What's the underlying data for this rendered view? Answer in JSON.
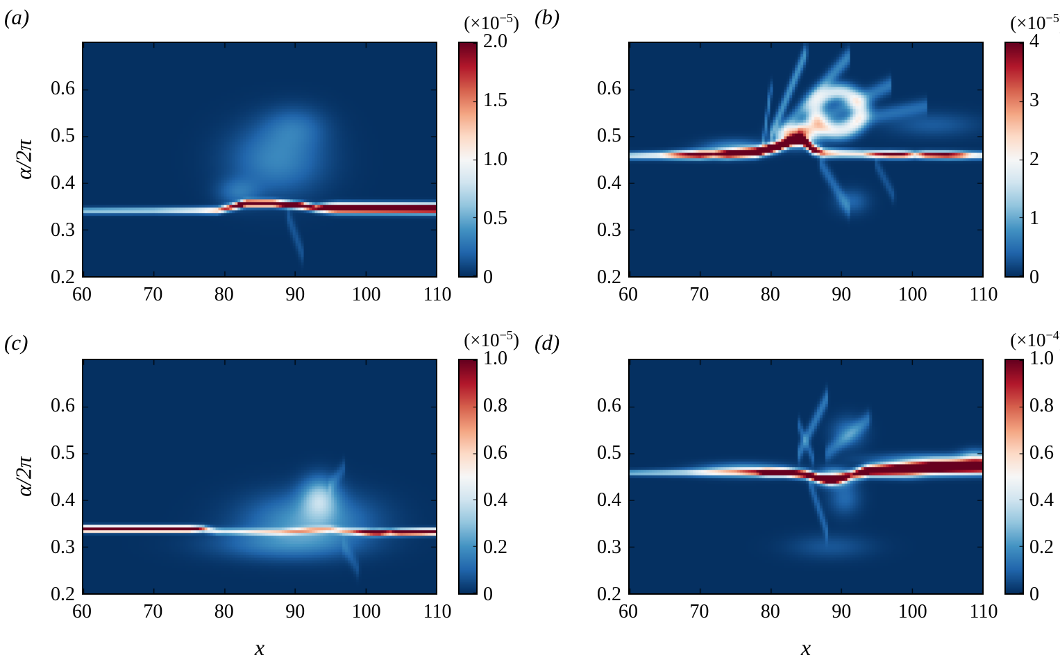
{
  "figure": {
    "background": "#ffffff",
    "colormap": "RdBu reversed (dark blue = 0, white = mid, dark red = max)",
    "colormap_stops": [
      "#053061",
      "#2166ac",
      "#4393c3",
      "#92c5de",
      "#d1e5f0",
      "#f7f7f7",
      "#fddbc7",
      "#f4a582",
      "#d6604d",
      "#b2182b",
      "#67001f"
    ]
  },
  "chart_data": [
    {
      "type": "heatmap",
      "label": "(a)",
      "ylabel": "α/2π",
      "x_range": [
        60,
        110
      ],
      "y_range": [
        0.2,
        0.7
      ],
      "x_ticks": [
        "60",
        "70",
        "80",
        "90",
        "100",
        "110"
      ],
      "y_ticks": [
        "0.6",
        "0.5",
        "0.4",
        "0.3",
        "0.2"
      ],
      "colorbar": {
        "scale_prefix": "(×10",
        "scale_exponent": "−5",
        "scale_suffix": ")",
        "ticks": [
          "2.0",
          "1.5",
          "1.0",
          "0.5",
          "0"
        ],
        "range": [
          0,
          2.0
        ]
      },
      "description": "Thin spectral ridge near α/2π≈0.34: faint blue for x=60–80, saturated red from x≈82–110 stepping up to ≈0.356 then back to ≈0.345; diffuse blue fan above around x≈85–95.",
      "features": [
        {
          "type": "ridge",
          "points": [
            [
              60,
              0.34
            ],
            [
              79,
              0.341
            ],
            [
              81,
              0.348
            ],
            [
              83,
              0.356
            ],
            [
              87,
              0.356
            ],
            [
              91,
              0.351
            ],
            [
              93,
              0.346
            ],
            [
              110,
              0.345
            ]
          ],
          "amp": [
            [
              60,
              0.32
            ],
            [
              70,
              0.36
            ],
            [
              76,
              0.5
            ],
            [
              79,
              0.7
            ],
            [
              81,
              1.0
            ],
            [
              83,
              1.5
            ],
            [
              91,
              1.5
            ],
            [
              93,
              1.0
            ],
            [
              95,
              1.5
            ],
            [
              110,
              1.5
            ]
          ],
          "sigma": [
            [
              60,
              0.0045
            ],
            [
              92,
              0.0045
            ],
            [
              96,
              0.0065
            ],
            [
              110,
              0.0065
            ]
          ]
        },
        {
          "type": "blob",
          "cx": 87.5,
          "cy": 0.45,
          "sx": 4.5,
          "sy": 0.05,
          "amp": 0.17
        },
        {
          "type": "blob",
          "cx": 90,
          "cy": 0.52,
          "sx": 3,
          "sy": 0.03,
          "amp": 0.1
        },
        {
          "type": "blob",
          "cx": 82,
          "cy": 0.38,
          "sx": 2,
          "sy": 0.02,
          "amp": 0.12
        },
        {
          "type": "streak",
          "x0": 89,
          "y0": 0.33,
          "x1": 91,
          "y1": 0.25,
          "w": 0.015,
          "amp": 0.07
        }
      ]
    },
    {
      "type": "heatmap",
      "label": "(b)",
      "x_range": [
        60,
        110
      ],
      "y_range": [
        0.2,
        0.7
      ],
      "x_ticks": [
        "60",
        "70",
        "80",
        "90",
        "100",
        "110"
      ],
      "y_ticks": [
        "0.6",
        "0.5",
        "0.4",
        "0.3",
        "0.2"
      ],
      "colorbar": {
        "scale_prefix": "(×10",
        "scale_exponent": "−5",
        "scale_suffix": ")",
        "ticks": [
          "4",
          "3",
          "2",
          "1",
          "0"
        ],
        "range": [
          0,
          4
        ]
      },
      "description": "Ridge near α/2π≈0.46 across full x, red from x≈67 with peak rising to ≈0.49 at x≈83; large diffuse fan of streaks above (x≈80–100) with white ring and dark hole near (90, 0.55); intermittent red patches for x>94.",
      "features": [
        {
          "type": "ridge",
          "points": [
            [
              60,
              0.458
            ],
            [
              68,
              0.46
            ],
            [
              74,
              0.462
            ],
            [
              78,
              0.466
            ],
            [
              81,
              0.478
            ],
            [
              83,
              0.49
            ],
            [
              84.5,
              0.492
            ],
            [
              86,
              0.472
            ],
            [
              87.5,
              0.464
            ],
            [
              95,
              0.461
            ],
            [
              110,
              0.459
            ]
          ],
          "amp": [
            [
              60,
              0.4
            ],
            [
              64,
              0.5
            ],
            [
              67,
              0.9
            ],
            [
              70,
              1.2
            ],
            [
              72,
              0.9
            ],
            [
              74,
              1.3
            ],
            [
              78,
              1.5
            ],
            [
              85,
              1.6
            ],
            [
              86.5,
              1.0
            ],
            [
              88,
              0.7
            ],
            [
              90,
              0.55
            ],
            [
              93,
              0.55
            ],
            [
              95,
              0.9
            ],
            [
              97,
              1.1
            ],
            [
              99,
              1.0
            ],
            [
              100.5,
              0.6
            ],
            [
              102,
              1.0
            ],
            [
              105,
              1.1
            ],
            [
              107,
              0.9
            ],
            [
              108.5,
              0.6
            ],
            [
              110,
              0.5
            ]
          ],
          "sigma": [
            [
              60,
              0.005
            ],
            [
              78,
              0.0065
            ],
            [
              86,
              0.0065
            ],
            [
              95,
              0.005
            ],
            [
              110,
              0.005
            ]
          ]
        },
        {
          "type": "blob",
          "cx": 84,
          "cy": 0.503,
          "sx": 1.8,
          "sy": 0.015,
          "amp": 0.65
        },
        {
          "type": "blob",
          "cx": 75,
          "cy": 0.475,
          "sx": 3,
          "sy": 0.012,
          "amp": 0.2
        },
        {
          "type": "streak",
          "x0": 80,
          "y0": 0.5,
          "x1": 85,
          "y1": 0.68,
          "w": 0.013,
          "amp": 0.2
        },
        {
          "type": "streak",
          "x0": 81,
          "y0": 0.5,
          "x1": 91,
          "y1": 0.67,
          "w": 0.013,
          "amp": 0.17
        },
        {
          "type": "streak",
          "x0": 82,
          "y0": 0.5,
          "x1": 97,
          "y1": 0.61,
          "w": 0.012,
          "amp": 0.14
        },
        {
          "type": "streak",
          "x0": 84,
          "y0": 0.51,
          "x1": 102,
          "y1": 0.565,
          "w": 0.011,
          "amp": 0.11
        },
        {
          "type": "streak",
          "x0": 79,
          "y0": 0.49,
          "x1": 80,
          "y1": 0.6,
          "w": 0.012,
          "amp": 0.15
        },
        {
          "type": "ring",
          "cx": 89.5,
          "cy": 0.553,
          "sx": 3.2,
          "sy": 0.042,
          "w": 0.3,
          "amp": 0.42
        },
        {
          "type": "streak",
          "x0": 87,
          "y0": 0.445,
          "x1": 91,
          "y1": 0.345,
          "w": 0.013,
          "amp": 0.11
        },
        {
          "type": "streak",
          "x0": 95,
          "y0": 0.44,
          "x1": 97.5,
          "y1": 0.37,
          "w": 0.011,
          "amp": 0.07
        },
        {
          "type": "blob",
          "cx": 91.5,
          "cy": 0.36,
          "sx": 1.6,
          "sy": 0.018,
          "amp": 0.1
        },
        {
          "type": "blob",
          "cx": 103,
          "cy": 0.525,
          "sx": 4.5,
          "sy": 0.018,
          "amp": 0.08
        }
      ]
    },
    {
      "type": "heatmap",
      "label": "(c)",
      "xlabel": "x",
      "ylabel": "α/2π",
      "x_range": [
        60,
        110
      ],
      "y_range": [
        0.2,
        0.7
      ],
      "x_ticks": [
        "60",
        "70",
        "80",
        "90",
        "100",
        "110"
      ],
      "y_ticks": [
        "0.6",
        "0.5",
        "0.4",
        "0.3",
        "0.2"
      ],
      "colorbar": {
        "scale_prefix": "(×10",
        "scale_exponent": "−5",
        "scale_suffix": ")",
        "ticks": [
          "1.0",
          "0.8",
          "0.6",
          "0.4",
          "0.2",
          "0"
        ],
        "range": [
          0,
          1.0
        ]
      },
      "description": "Thin ridge at α/2π≈0.338: saturated red for x=60–77, weak patchy blue segment for x≈78–98 with small diffuse cloud around (92, 0.36), red again for x≈99–110 at ≈0.331.",
      "features": [
        {
          "type": "ridge",
          "points": [
            [
              60,
              0.338
            ],
            [
              77,
              0.338
            ],
            [
              79,
              0.333
            ],
            [
              88,
              0.331
            ],
            [
              92,
              0.335
            ],
            [
              95,
              0.337
            ],
            [
              97,
              0.333
            ],
            [
              101,
              0.33
            ],
            [
              110,
              0.332
            ]
          ],
          "amp": [
            [
              60,
              1.4
            ],
            [
              75,
              1.4
            ],
            [
              76.5,
              0.9
            ],
            [
              78,
              0.5
            ],
            [
              80,
              0.38
            ],
            [
              84,
              0.42
            ],
            [
              88,
              0.45
            ],
            [
              92,
              0.55
            ],
            [
              94,
              0.5
            ],
            [
              96,
              0.45
            ],
            [
              98,
              0.6
            ],
            [
              100,
              1.0
            ],
            [
              102,
              1.2
            ],
            [
              103.5,
              0.9
            ],
            [
              105,
              1.3
            ],
            [
              108,
              1.4
            ],
            [
              110,
              1.3
            ]
          ],
          "sigma": [
            [
              60,
              0.0042
            ],
            [
              110,
              0.0042
            ]
          ]
        },
        {
          "type": "blob",
          "cx": 92,
          "cy": 0.355,
          "sx": 6,
          "sy": 0.04,
          "amp": 0.22
        },
        {
          "type": "blob",
          "cx": 93.5,
          "cy": 0.405,
          "sx": 1.8,
          "sy": 0.03,
          "amp": 0.28
        },
        {
          "type": "blob",
          "cx": 88,
          "cy": 0.305,
          "sx": 7,
          "sy": 0.022,
          "amp": 0.12
        },
        {
          "type": "streak",
          "x0": 95,
          "y0": 0.43,
          "x1": 97,
          "y1": 0.47,
          "w": 0.012,
          "amp": 0.07
        },
        {
          "type": "streak",
          "x0": 97,
          "y0": 0.3,
          "x1": 99,
          "y1": 0.25,
          "w": 0.013,
          "amp": 0.06
        }
      ]
    },
    {
      "type": "heatmap",
      "label": "(d)",
      "xlabel": "x",
      "x_range": [
        60,
        110
      ],
      "y_range": [
        0.2,
        0.7
      ],
      "x_ticks": [
        "60",
        "70",
        "80",
        "90",
        "100",
        "110"
      ],
      "y_ticks": [
        "0.6",
        "0.5",
        "0.4",
        "0.3",
        "0.2"
      ],
      "colorbar": {
        "scale_prefix": "(×10",
        "scale_exponent": "−4",
        "scale_suffix": ")",
        "ticks": [
          "1.0",
          "0.8",
          "0.6",
          "0.4",
          "0.2",
          "0"
        ],
        "range": [
          0,
          1.0
        ]
      },
      "description": "Ridge near α/2π≈0.46: faint blue x=60–78, dark red x≈79–91 dipping to ≈0.443 near x≈88, then a thicker saturated red band from x≈93–110 rising to ≈0.472; faint blue structures above and below around x≈85–95.",
      "features": [
        {
          "type": "ridge",
          "points": [
            [
              60,
              0.458
            ],
            [
              70,
              0.459
            ],
            [
              76,
              0.46
            ],
            [
              82,
              0.459
            ],
            [
              85,
              0.455
            ],
            [
              87,
              0.446
            ],
            [
              88.5,
              0.443
            ],
            [
              90,
              0.447
            ],
            [
              92,
              0.456
            ],
            [
              94,
              0.463
            ],
            [
              99,
              0.466
            ],
            [
              103,
              0.47
            ],
            [
              110,
              0.472
            ]
          ],
          "amp": [
            [
              60,
              0.3
            ],
            [
              68,
              0.38
            ],
            [
              71,
              0.5
            ],
            [
              75,
              0.55
            ],
            [
              78,
              0.8
            ],
            [
              79.5,
              1.4
            ],
            [
              90,
              1.4
            ],
            [
              91.5,
              0.8
            ],
            [
              93,
              1.5
            ],
            [
              110,
              1.5
            ]
          ],
          "sigma": [
            [
              60,
              0.004
            ],
            [
              76,
              0.0055
            ],
            [
              90,
              0.0055
            ],
            [
              93,
              0.007
            ],
            [
              100,
              0.0095
            ],
            [
              110,
              0.0095
            ]
          ]
        },
        {
          "type": "blob",
          "cx": 89,
          "cy": 0.448,
          "sx": 1.5,
          "sy": 0.012,
          "amp": 0.45
        },
        {
          "type": "blob",
          "cx": 76,
          "cy": 0.465,
          "sx": 4,
          "sy": 0.01,
          "amp": 0.22
        },
        {
          "type": "streak",
          "x0": 84,
          "y0": 0.5,
          "x1": 88,
          "y1": 0.62,
          "w": 0.013,
          "amp": 0.14
        },
        {
          "type": "streak",
          "x0": 88,
          "y0": 0.5,
          "x1": 94,
          "y1": 0.575,
          "w": 0.012,
          "amp": 0.12
        },
        {
          "type": "streak",
          "x0": 86,
          "y0": 0.49,
          "x1": 84,
          "y1": 0.56,
          "w": 0.011,
          "amp": 0.1
        },
        {
          "type": "blob",
          "cx": 91,
          "cy": 0.545,
          "sx": 1.6,
          "sy": 0.022,
          "amp": 0.13
        },
        {
          "type": "streak",
          "x0": 85.5,
          "y0": 0.44,
          "x1": 88,
          "y1": 0.33,
          "w": 0.013,
          "amp": 0.1
        },
        {
          "type": "blob",
          "cx": 88.5,
          "cy": 0.3,
          "sx": 4,
          "sy": 0.018,
          "amp": 0.07
        },
        {
          "type": "blob",
          "cx": 90.5,
          "cy": 0.405,
          "sx": 1.5,
          "sy": 0.025,
          "amp": 0.11
        },
        {
          "type": "blob",
          "cx": 103,
          "cy": 0.487,
          "sx": 6,
          "sy": 0.009,
          "amp": 0.18
        },
        {
          "type": "blob",
          "cx": 109,
          "cy": 0.49,
          "sx": 1.5,
          "sy": 0.012,
          "amp": 0.25
        }
      ]
    }
  ]
}
